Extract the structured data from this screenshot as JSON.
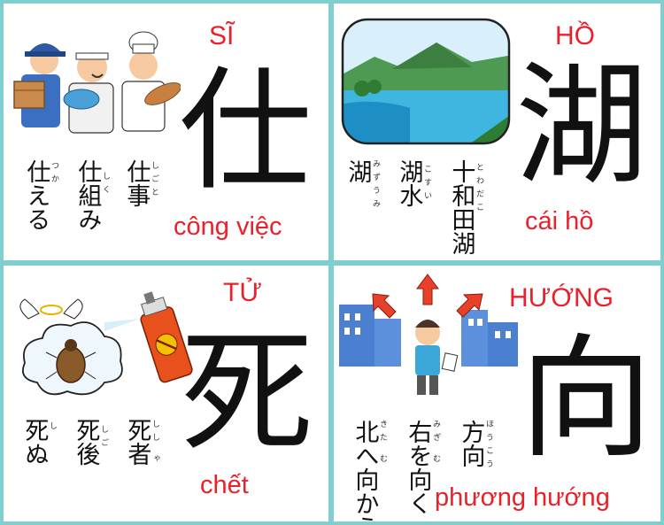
{
  "cards": [
    {
      "reading": "SĨ",
      "kanji": "仕",
      "meaning": "công việc",
      "words": [
        {
          "word": "仕事",
          "furigana": "しごと"
        },
        {
          "word": "仕組み",
          "furigana": "しく"
        },
        {
          "word": "仕える",
          "furigana": "つか"
        }
      ],
      "illustration_icon": "workers-icon"
    },
    {
      "reading": "HỒ",
      "kanji": "湖",
      "meaning": "cái hồ",
      "words": [
        {
          "word": "十和田湖",
          "furigana": "とわだこ"
        },
        {
          "word": "湖水",
          "furigana": "こすい"
        },
        {
          "word": "湖",
          "furigana": "みずうみ"
        }
      ],
      "illustration_icon": "lake-icon"
    },
    {
      "reading": "TỬ",
      "kanji": "死",
      "meaning": "chết",
      "words": [
        {
          "word": "死者",
          "furigana": "しし ゃ"
        },
        {
          "word": "死後",
          "furigana": "しご"
        },
        {
          "word": "死ぬ",
          "furigana": "し"
        }
      ],
      "illustration_icon": "bug-spray-icon"
    },
    {
      "reading": "HƯỚNG",
      "kanji": "向",
      "meaning": "phương hướng",
      "words": [
        {
          "word": "方向",
          "furigana": "ほうこう"
        },
        {
          "word": "右を向く",
          "furigana": "みぎ む"
        },
        {
          "word": "北へ向かう",
          "furigana": "きた む"
        }
      ],
      "illustration_icon": "direction-boy-icon"
    }
  ],
  "colors": {
    "border": "#7fcfcf",
    "card": "#ffffff",
    "reading": "#e8212a",
    "kanji": "#111111"
  }
}
